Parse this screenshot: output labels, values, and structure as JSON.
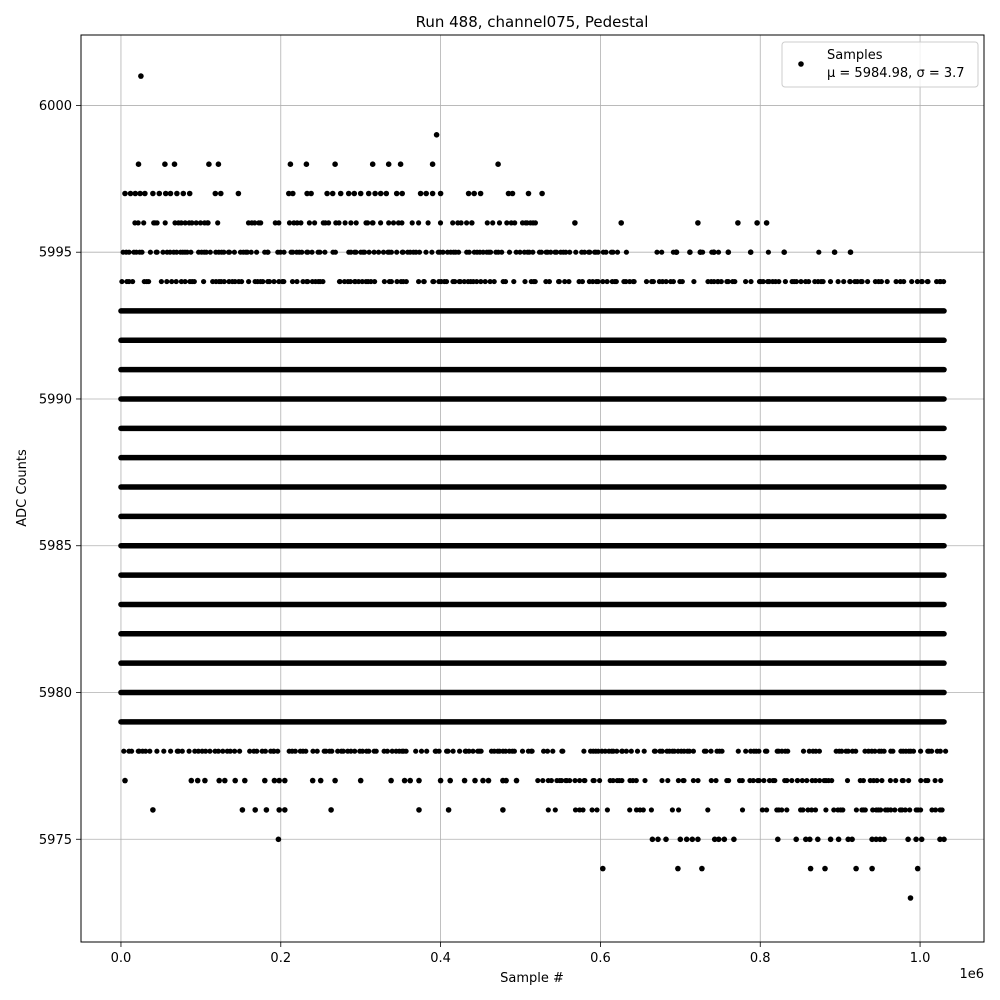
{
  "chart_data": {
    "type": "scatter",
    "title": "Run 488, channel075, Pedestal",
    "xlabel": "Sample #",
    "ylabel": "ADC Counts",
    "x_offset_label": "1e6",
    "xlim": [
      -50000,
      1080000
    ],
    "ylim": [
      5971.5,
      6002.4
    ],
    "x_ticks": [
      0,
      200000,
      400000,
      600000,
      800000,
      1000000
    ],
    "x_tick_labels": [
      "0.0",
      "0.2",
      "0.4",
      "0.6",
      "0.8",
      "1.0"
    ],
    "y_ticks": [
      5975,
      5980,
      5985,
      5990,
      5995,
      6000
    ],
    "y_tick_labels": [
      "5975",
      "5980",
      "5985",
      "5990",
      "5995",
      "6000"
    ],
    "grid": true,
    "legend": {
      "placement": "top-right",
      "series_name": "Samples",
      "stats_text": "μ = 5984.98, σ = 3.7"
    },
    "marker_color": "#000000",
    "x_max": 1030000,
    "dense_levels": [
      5979,
      5980,
      5981,
      5982,
      5983,
      5984,
      5985,
      5986,
      5987,
      5988,
      5989,
      5990,
      5991,
      5992,
      5993
    ],
    "sparse_bands": [
      {
        "level": 5994,
        "x_range": [
          0,
          1030000
        ],
        "density": 0.7
      },
      {
        "level": 5995,
        "x_range": [
          0,
          620000
        ],
        "density": 0.8
      },
      {
        "level": 5995,
        "x_range": [
          620000,
          900000
        ],
        "density": 0.12
      },
      {
        "level": 5996,
        "x_range": [
          0,
          520000
        ],
        "density": 0.55
      },
      {
        "level": 5978,
        "x_range": [
          0,
          1030000
        ],
        "density": 0.7
      },
      {
        "level": 5977,
        "x_range": [
          520000,
          1030000
        ],
        "density": 0.55
      },
      {
        "level": 5976,
        "x_range": [
          520000,
          800000
        ],
        "density": 0.25
      },
      {
        "level": 5976,
        "x_range": [
          800000,
          1030000
        ],
        "density": 0.6
      }
    ],
    "points": [
      [
        25000,
        6001
      ],
      [
        395000,
        5999
      ],
      [
        22000,
        5998
      ],
      [
        55000,
        5998
      ],
      [
        67000,
        5998
      ],
      [
        110000,
        5998
      ],
      [
        122000,
        5998
      ],
      [
        212000,
        5998
      ],
      [
        232000,
        5998
      ],
      [
        268000,
        5998
      ],
      [
        315000,
        5998
      ],
      [
        335000,
        5998
      ],
      [
        350000,
        5998
      ],
      [
        390000,
        5998
      ],
      [
        472000,
        5998
      ],
      [
        5000,
        5997
      ],
      [
        12000,
        5997
      ],
      [
        18000,
        5997
      ],
      [
        24000,
        5997
      ],
      [
        30000,
        5997
      ],
      [
        40000,
        5997
      ],
      [
        48000,
        5997
      ],
      [
        56000,
        5997
      ],
      [
        62000,
        5997
      ],
      [
        70000,
        5997
      ],
      [
        78000,
        5997
      ],
      [
        86000,
        5997
      ],
      [
        118000,
        5997
      ],
      [
        125000,
        5997
      ],
      [
        147000,
        5997
      ],
      [
        210000,
        5997
      ],
      [
        215000,
        5997
      ],
      [
        233000,
        5997
      ],
      [
        238000,
        5997
      ],
      [
        258000,
        5997
      ],
      [
        265000,
        5997
      ],
      [
        275000,
        5997
      ],
      [
        285000,
        5997
      ],
      [
        292000,
        5997
      ],
      [
        300000,
        5997
      ],
      [
        310000,
        5997
      ],
      [
        318000,
        5997
      ],
      [
        325000,
        5997
      ],
      [
        332000,
        5997
      ],
      [
        345000,
        5997
      ],
      [
        352000,
        5997
      ],
      [
        375000,
        5997
      ],
      [
        382000,
        5997
      ],
      [
        390000,
        5997
      ],
      [
        400000,
        5997
      ],
      [
        435000,
        5997
      ],
      [
        442000,
        5997
      ],
      [
        450000,
        5997
      ],
      [
        485000,
        5997
      ],
      [
        490000,
        5997
      ],
      [
        510000,
        5997
      ],
      [
        527000,
        5997
      ],
      [
        568000,
        5996
      ],
      [
        626000,
        5996
      ],
      [
        722000,
        5996
      ],
      [
        772000,
        5996
      ],
      [
        796000,
        5996
      ],
      [
        808000,
        5996
      ],
      [
        695000,
        5995
      ],
      [
        712000,
        5995
      ],
      [
        725000,
        5995
      ],
      [
        742000,
        5995
      ],
      [
        760000,
        5995
      ],
      [
        788000,
        5995
      ],
      [
        830000,
        5995
      ],
      [
        893000,
        5995
      ],
      [
        913000,
        5995
      ],
      [
        5000,
        5977
      ],
      [
        88000,
        5977
      ],
      [
        96000,
        5977
      ],
      [
        105000,
        5977
      ],
      [
        123000,
        5977
      ],
      [
        130000,
        5977
      ],
      [
        143000,
        5977
      ],
      [
        155000,
        5977
      ],
      [
        180000,
        5977
      ],
      [
        192000,
        5977
      ],
      [
        198000,
        5977
      ],
      [
        205000,
        5977
      ],
      [
        240000,
        5977
      ],
      [
        250000,
        5977
      ],
      [
        268000,
        5977
      ],
      [
        300000,
        5977
      ],
      [
        338000,
        5977
      ],
      [
        355000,
        5977
      ],
      [
        362000,
        5977
      ],
      [
        373000,
        5977
      ],
      [
        400000,
        5977
      ],
      [
        412000,
        5977
      ],
      [
        430000,
        5977
      ],
      [
        443000,
        5977
      ],
      [
        453000,
        5977
      ],
      [
        460000,
        5977
      ],
      [
        478000,
        5977
      ],
      [
        482000,
        5977
      ],
      [
        495000,
        5977
      ],
      [
        40000,
        5976
      ],
      [
        152000,
        5976
      ],
      [
        168000,
        5976
      ],
      [
        182000,
        5976
      ],
      [
        198000,
        5976
      ],
      [
        205000,
        5976
      ],
      [
        263000,
        5976
      ],
      [
        373000,
        5976
      ],
      [
        410000,
        5976
      ],
      [
        478000,
        5976
      ],
      [
        197000,
        5975
      ],
      [
        665000,
        5975
      ],
      [
        672000,
        5975
      ],
      [
        682000,
        5975
      ],
      [
        700000,
        5975
      ],
      [
        708000,
        5975
      ],
      [
        715000,
        5975
      ],
      [
        722000,
        5975
      ],
      [
        743000,
        5975
      ],
      [
        748000,
        5975
      ],
      [
        755000,
        5975
      ],
      [
        767000,
        5975
      ],
      [
        822000,
        5975
      ],
      [
        845000,
        5975
      ],
      [
        857000,
        5975
      ],
      [
        862000,
        5975
      ],
      [
        872000,
        5975
      ],
      [
        888000,
        5975
      ],
      [
        898000,
        5975
      ],
      [
        910000,
        5975
      ],
      [
        915000,
        5975
      ],
      [
        940000,
        5975
      ],
      [
        945000,
        5975
      ],
      [
        950000,
        5975
      ],
      [
        955000,
        5975
      ],
      [
        985000,
        5975
      ],
      [
        995000,
        5975
      ],
      [
        1002000,
        5975
      ],
      [
        1025000,
        5975
      ],
      [
        1030000,
        5975
      ],
      [
        603000,
        5974
      ],
      [
        697000,
        5974
      ],
      [
        727000,
        5974
      ],
      [
        863000,
        5974
      ],
      [
        881000,
        5974
      ],
      [
        920000,
        5974
      ],
      [
        940000,
        5974
      ],
      [
        997000,
        5974
      ],
      [
        988000,
        5973
      ]
    ]
  }
}
